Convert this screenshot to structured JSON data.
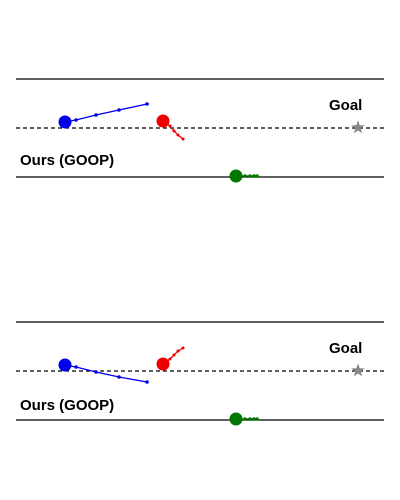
{
  "panels": [
    {
      "method_label": "Ours (GOOP)",
      "goal_label": "Goal",
      "agents": [
        {
          "name": "blue-agent",
          "color": "#0000ee"
        },
        {
          "name": "red-agent",
          "color": "#ee0000"
        },
        {
          "name": "green-agent",
          "color": "#007700"
        }
      ],
      "goal_icon": "star-icon",
      "goal_color": "#888888"
    },
    {
      "method_label": "Ours (GOOP)",
      "goal_label": "Goal",
      "agents": [
        {
          "name": "blue-agent",
          "color": "#0000ee"
        },
        {
          "name": "red-agent",
          "color": "#ee0000"
        },
        {
          "name": "green-agent",
          "color": "#007700"
        }
      ],
      "goal_icon": "star-icon",
      "goal_color": "#888888"
    }
  ]
}
